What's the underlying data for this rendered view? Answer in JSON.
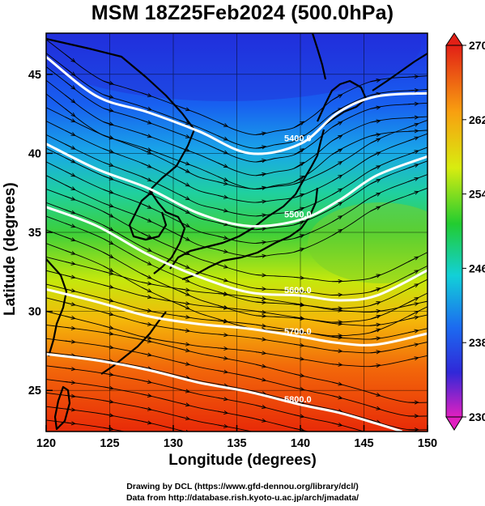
{
  "title": "MSM 18Z25Feb2024 (500.0hPa)",
  "x_axis": {
    "label": "Longitude (degrees)",
    "range": [
      120,
      150
    ],
    "ticks": [
      "120",
      "125",
      "130",
      "135",
      "140",
      "145",
      "150"
    ]
  },
  "y_axis": {
    "label": "Latitude  (degrees)",
    "range": [
      22.4,
      47.6
    ],
    "ticks": [
      "25",
      "30",
      "35",
      "40",
      "45"
    ]
  },
  "colorbar": {
    "range": [
      230,
      270
    ],
    "ticks": [
      "270",
      "262",
      "254",
      "246",
      "238",
      "230"
    ],
    "colormap": "rainbow (magenta-blue-cyan-green-yellow-orange-red)"
  },
  "contours": [
    {
      "label": "5400.0",
      "lat_at_lon": [
        [
          120,
          46.1
        ],
        [
          124,
          43.6
        ],
        [
          128,
          42.6
        ],
        [
          132,
          41.4
        ],
        [
          136,
          40.0
        ],
        [
          140,
          40.6
        ],
        [
          143,
          42.6
        ],
        [
          146,
          43.6
        ],
        [
          150,
          43.8
        ]
      ]
    },
    {
      "label": "5500.0",
      "lat_at_lon": [
        [
          120,
          40.6
        ],
        [
          124,
          39.0
        ],
        [
          128,
          37.8
        ],
        [
          132,
          36.2
        ],
        [
          136,
          35.4
        ],
        [
          140,
          35.8
        ],
        [
          143,
          37.0
        ],
        [
          146,
          38.6
        ],
        [
          150,
          39.8
        ]
      ]
    },
    {
      "label": "5600.0",
      "lat_at_lon": [
        [
          120,
          36.6
        ],
        [
          124,
          35.4
        ],
        [
          128,
          33.6
        ],
        [
          132,
          32.2
        ],
        [
          136,
          31.2
        ],
        [
          140,
          31.0
        ],
        [
          143,
          30.7
        ],
        [
          146,
          31.0
        ],
        [
          150,
          32.6
        ]
      ]
    },
    {
      "label": "5700.0",
      "lat_at_lon": [
        [
          120,
          31.4
        ],
        [
          124,
          30.6
        ],
        [
          128,
          29.7
        ],
        [
          132,
          29.2
        ],
        [
          136,
          28.9
        ],
        [
          140,
          28.4
        ],
        [
          143,
          28.0
        ],
        [
          146,
          27.9
        ],
        [
          150,
          28.6
        ]
      ]
    },
    {
      "label": "5800.0",
      "lat_at_lon": [
        [
          120,
          27.3
        ],
        [
          124,
          26.9
        ],
        [
          128,
          26.3
        ],
        [
          132,
          25.5
        ],
        [
          136,
          24.9
        ],
        [
          140,
          24.1
        ],
        [
          143,
          23.6
        ],
        [
          146,
          22.9
        ],
        [
          148,
          22.4
        ]
      ]
    }
  ],
  "credits": [
    "Drawing by DCL (https://www.gfd-dennou.org/library/dcl/)",
    "Data from http://database.rish.kyoto-u.ac.jp/arch/jmadata/"
  ],
  "colors": {
    "contour": "#ffffff",
    "streamline": "#000000",
    "coastline": "#000000"
  }
}
